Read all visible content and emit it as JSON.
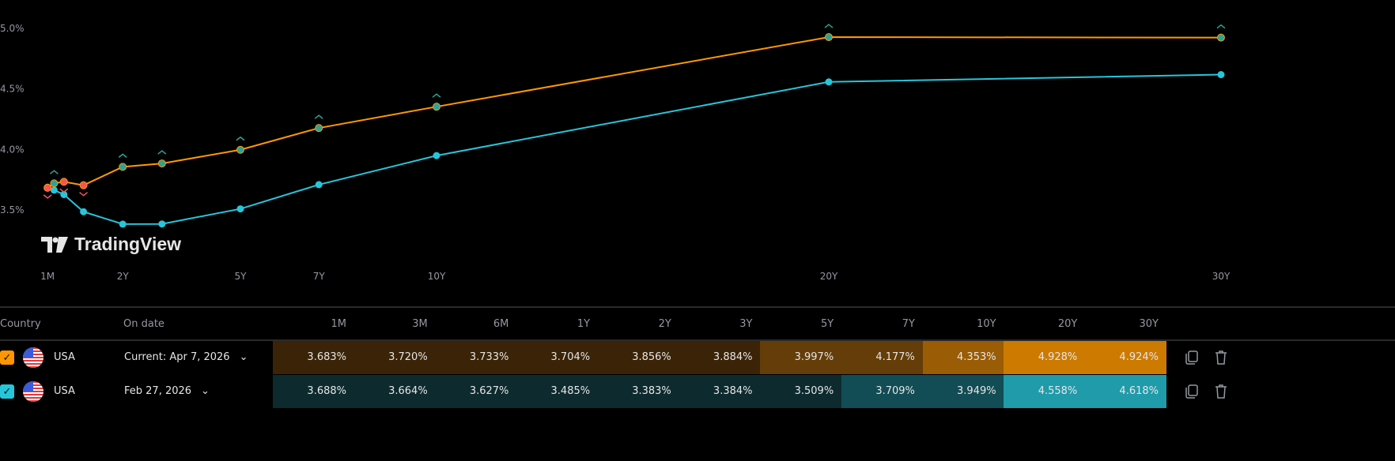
{
  "chart_data": {
    "type": "line",
    "x_tick_labels": [
      "1M",
      "2Y",
      "5Y",
      "7Y",
      "10Y",
      "20Y",
      "30Y"
    ],
    "x_tick_years": [
      0.0833,
      2,
      5,
      7,
      10,
      20,
      30
    ],
    "y_tick_labels": [
      "5.0%",
      "4.5%",
      "4.0%",
      "3.5%"
    ],
    "y_tick_values": [
      5.0,
      4.5,
      4.0,
      3.5
    ],
    "maturities": [
      "1M",
      "3M",
      "6M",
      "1Y",
      "2Y",
      "3Y",
      "5Y",
      "7Y",
      "10Y",
      "20Y",
      "30Y"
    ],
    "maturity_years": [
      0.0833,
      0.25,
      0.5,
      1,
      2,
      3,
      5,
      7,
      10,
      20,
      30
    ],
    "series": [
      {
        "values": [
          3.683,
          3.72,
          3.733,
          3.704,
          3.856,
          3.884,
          3.997,
          4.177,
          4.353,
          4.928,
          4.924
        ],
        "color": "#ff9800",
        "markers": [
          "down",
          "up",
          "down",
          "down",
          "up",
          "up",
          "up",
          "up",
          "up",
          "up",
          "up"
        ]
      },
      {
        "values": [
          3.688,
          3.664,
          3.627,
          3.485,
          3.383,
          3.384,
          3.509,
          3.709,
          3.949,
          4.558,
          4.618
        ],
        "color": "#26c6da"
      }
    ],
    "marker_colors": {
      "up": "#26a69a",
      "down": "#f7525f"
    },
    "grid": false
  },
  "watermark": "TradingView",
  "table": {
    "headers": {
      "country": "Country",
      "date": "On date",
      "maturities": [
        "1M",
        "3M",
        "6M",
        "1Y",
        "2Y",
        "3Y",
        "5Y",
        "7Y",
        "10Y",
        "20Y",
        "30Y"
      ]
    },
    "rows": [
      {
        "country": "USA",
        "date": "Current: Apr 7, 2026",
        "checkbox_color": "#ff9800",
        "values": [
          "3.683%",
          "3.720%",
          "3.733%",
          "3.704%",
          "3.856%",
          "3.884%",
          "3.997%",
          "4.177%",
          "4.353%",
          "4.928%",
          "4.924%"
        ],
        "cell_colors": [
          "#3a2306",
          "#3a2306",
          "#3a2306",
          "#3a2306",
          "#3a2306",
          "#3a2306",
          "#643d08",
          "#643d08",
          "#9a5c05",
          "#cc7a00",
          "#cc7a00"
        ]
      },
      {
        "country": "USA",
        "date": "Feb 27, 2026",
        "checkbox_color": "#26c6da",
        "values": [
          "3.688%",
          "3.664%",
          "3.627%",
          "3.485%",
          "3.383%",
          "3.384%",
          "3.509%",
          "3.709%",
          "3.949%",
          "4.558%",
          "4.618%"
        ],
        "cell_colors": [
          "#0d2a2e",
          "#0d2a2e",
          "#0d2a2e",
          "#0d2a2e",
          "#0d2a2e",
          "#0d2a2e",
          "#0d2a2e",
          "#124c54",
          "#124c54",
          "#1f9baa",
          "#1f9baa"
        ]
      }
    ]
  }
}
